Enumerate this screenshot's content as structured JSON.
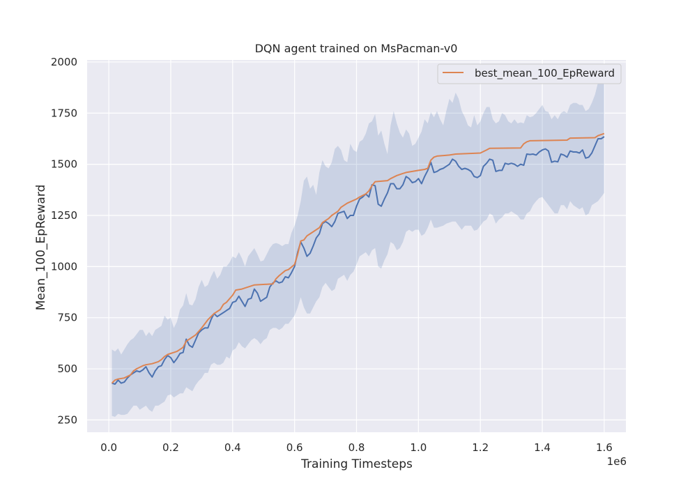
{
  "chart_data": {
    "type": "line",
    "title": "DQN agent trained on MsPacman-v0",
    "xlabel": "Training Timesteps",
    "ylabel": "Mean_100_EpReward",
    "x_offset_label": "1e6",
    "xlim": [
      -0.07,
      1.67
    ],
    "ylim": [
      190,
      2010
    ],
    "xticks": [
      0.0,
      0.2,
      0.4,
      0.6,
      0.8,
      1.0,
      1.2,
      1.4,
      1.6
    ],
    "xtick_labels": [
      "0.0",
      "0.2",
      "0.4",
      "0.6",
      "0.8",
      "1.0",
      "1.2",
      "1.4",
      "1.6"
    ],
    "yticks": [
      250,
      500,
      750,
      1000,
      1250,
      1500,
      1750,
      2000
    ],
    "ytick_labels": [
      "250",
      "500",
      "750",
      "1000",
      "1250",
      "1500",
      "1750",
      "2000"
    ],
    "grid": true,
    "legend_position": "top-right",
    "colors": {
      "background": "#eaeaf2",
      "grid": "#ffffff",
      "mean_line": "#4c72b0",
      "band": "#4c72b0",
      "best_line": "#dd8452"
    },
    "series": [
      {
        "name": "best_mean_100_EpReward",
        "color": "#dd8452",
        "x": [
          0.01,
          0.02,
          0.03,
          0.05,
          0.07,
          0.08,
          0.09,
          0.11,
          0.12,
          0.14,
          0.16,
          0.17,
          0.18,
          0.19,
          0.2,
          0.21,
          0.22,
          0.23,
          0.24,
          0.25,
          0.26,
          0.28,
          0.3,
          0.32,
          0.33,
          0.34,
          0.36,
          0.37,
          0.38,
          0.4,
          0.41,
          0.43,
          0.44,
          0.46,
          0.47,
          0.53,
          0.54,
          0.55,
          0.57,
          0.58,
          0.6,
          0.61,
          0.62,
          0.63,
          0.64,
          0.65,
          0.66,
          0.68,
          0.69,
          0.71,
          0.72,
          0.74,
          0.75,
          0.77,
          0.8,
          0.81,
          0.83,
          0.84,
          0.85,
          0.86,
          0.9,
          0.91,
          0.93,
          0.95,
          0.96,
          0.98,
          1.0,
          1.02,
          1.03,
          1.04,
          1.05,
          1.06,
          1.1,
          1.12,
          1.2,
          1.22,
          1.23,
          1.33,
          1.34,
          1.35,
          1.36,
          1.48,
          1.49,
          1.57,
          1.58,
          1.6
        ],
        "values": [
          430,
          445,
          450,
          455,
          470,
          490,
          500,
          515,
          520,
          525,
          535,
          545,
          560,
          570,
          575,
          580,
          585,
          595,
          605,
          635,
          645,
          665,
          700,
          740,
          755,
          770,
          790,
          815,
          825,
          860,
          885,
          890,
          895,
          905,
          910,
          915,
          940,
          955,
          980,
          985,
          1010,
          1060,
          1125,
          1130,
          1150,
          1160,
          1170,
          1190,
          1215,
          1235,
          1250,
          1270,
          1290,
          1310,
          1330,
          1340,
          1355,
          1370,
          1395,
          1415,
          1420,
          1430,
          1445,
          1455,
          1460,
          1465,
          1470,
          1475,
          1480,
          1520,
          1535,
          1540,
          1545,
          1550,
          1555,
          1570,
          1578,
          1580,
          1600,
          1610,
          1615,
          1618,
          1628,
          1630,
          1640,
          1650
        ]
      },
      {
        "name": "",
        "color": "#4c72b0",
        "x": [
          0.01,
          0.02,
          0.03,
          0.04,
          0.05,
          0.06,
          0.07,
          0.08,
          0.09,
          0.1,
          0.11,
          0.12,
          0.13,
          0.14,
          0.15,
          0.16,
          0.17,
          0.18,
          0.19,
          0.2,
          0.21,
          0.22,
          0.23,
          0.24,
          0.25,
          0.26,
          0.27,
          0.28,
          0.29,
          0.3,
          0.31,
          0.32,
          0.33,
          0.34,
          0.35,
          0.36,
          0.37,
          0.38,
          0.39,
          0.4,
          0.41,
          0.42,
          0.43,
          0.44,
          0.45,
          0.46,
          0.47,
          0.48,
          0.49,
          0.5,
          0.51,
          0.52,
          0.53,
          0.54,
          0.55,
          0.56,
          0.57,
          0.58,
          0.59,
          0.6,
          0.61,
          0.62,
          0.63,
          0.64,
          0.65,
          0.66,
          0.67,
          0.68,
          0.69,
          0.7,
          0.71,
          0.72,
          0.73,
          0.74,
          0.75,
          0.76,
          0.77,
          0.78,
          0.79,
          0.8,
          0.81,
          0.82,
          0.83,
          0.84,
          0.85,
          0.86,
          0.87,
          0.88,
          0.89,
          0.9,
          0.91,
          0.92,
          0.93,
          0.94,
          0.95,
          0.96,
          0.97,
          0.98,
          0.99,
          1.0,
          1.01,
          1.02,
          1.03,
          1.04,
          1.05,
          1.06,
          1.07,
          1.08,
          1.09,
          1.1,
          1.11,
          1.12,
          1.13,
          1.14,
          1.15,
          1.16,
          1.17,
          1.18,
          1.19,
          1.2,
          1.21,
          1.22,
          1.23,
          1.24,
          1.25,
          1.26,
          1.27,
          1.28,
          1.29,
          1.3,
          1.31,
          1.32,
          1.33,
          1.34,
          1.35,
          1.36,
          1.37,
          1.38,
          1.39,
          1.4,
          1.41,
          1.42,
          1.43,
          1.44,
          1.45,
          1.46,
          1.47,
          1.48,
          1.49,
          1.5,
          1.51,
          1.52,
          1.53,
          1.54,
          1.55,
          1.56,
          1.57,
          1.58,
          1.59,
          1.6
        ],
        "values": [
          430,
          425,
          445,
          430,
          435,
          455,
          470,
          480,
          490,
          485,
          495,
          510,
          480,
          460,
          490,
          510,
          515,
          545,
          565,
          555,
          530,
          550,
          575,
          580,
          645,
          615,
          605,
          640,
          675,
          690,
          700,
          700,
          740,
          770,
          755,
          765,
          775,
          785,
          795,
          825,
          830,
          855,
          830,
          805,
          840,
          845,
          890,
          870,
          830,
          840,
          850,
          900,
          920,
          930,
          920,
          925,
          950,
          945,
          970,
          1000,
          1070,
          1120,
          1090,
          1050,
          1065,
          1100,
          1140,
          1160,
          1210,
          1220,
          1210,
          1195,
          1220,
          1260,
          1265,
          1270,
          1235,
          1250,
          1250,
          1295,
          1330,
          1340,
          1355,
          1340,
          1400,
          1395,
          1305,
          1295,
          1330,
          1360,
          1405,
          1405,
          1380,
          1380,
          1400,
          1440,
          1430,
          1410,
          1415,
          1430,
          1405,
          1440,
          1470,
          1510,
          1460,
          1465,
          1475,
          1480,
          1490,
          1500,
          1525,
          1515,
          1490,
          1475,
          1480,
          1475,
          1465,
          1440,
          1435,
          1445,
          1490,
          1505,
          1525,
          1520,
          1465,
          1470,
          1470,
          1505,
          1500,
          1505,
          1500,
          1490,
          1500,
          1495,
          1550,
          1548,
          1550,
          1545,
          1560,
          1570,
          1575,
          1565,
          1510,
          1515,
          1512,
          1550,
          1545,
          1535,
          1565,
          1560,
          1560,
          1555,
          1570,
          1530,
          1535,
          1555,
          1590,
          1625,
          1625,
          1635
        ]
      }
    ],
    "band": {
      "upper": [
        595,
        585,
        600,
        570,
        595,
        620,
        640,
        650,
        670,
        690,
        690,
        660,
        680,
        660,
        690,
        700,
        710,
        760,
        740,
        750,
        700,
        730,
        790,
        810,
        870,
        815,
        810,
        840,
        900,
        935,
        900,
        910,
        950,
        980,
        940,
        960,
        1000,
        1000,
        1020,
        1050,
        1040,
        1070,
        1040,
        1000,
        1050,
        1070,
        1090,
        1060,
        1025,
        1030,
        1060,
        1090,
        1110,
        1115,
        1110,
        1100,
        1110,
        1110,
        1165,
        1200,
        1250,
        1320,
        1420,
        1440,
        1380,
        1400,
        1350,
        1460,
        1520,
        1490,
        1480,
        1510,
        1575,
        1590,
        1570,
        1520,
        1510,
        1600,
        1570,
        1560,
        1610,
        1620,
        1650,
        1700,
        1710,
        1745,
        1640,
        1665,
        1600,
        1550,
        1690,
        1760,
        1700,
        1655,
        1630,
        1670,
        1650,
        1590,
        1600,
        1630,
        1660,
        1720,
        1700,
        1755,
        1730,
        1760,
        1720,
        1690,
        1760,
        1820,
        1800,
        1850,
        1820,
        1760,
        1730,
        1690,
        1680,
        1740,
        1690,
        1710,
        1750,
        1780,
        1780,
        1720,
        1700,
        1710,
        1750,
        1740,
        1710,
        1700,
        1720,
        1700,
        1705,
        1700,
        1740,
        1730,
        1735,
        1750,
        1770,
        1790,
        1760,
        1755,
        1720,
        1740,
        1720,
        1750,
        1760,
        1750,
        1790,
        1800,
        1800,
        1790,
        1790,
        1760,
        1770,
        1800,
        1840,
        1900,
        1900,
        1900
      ],
      "lower": [
        270,
        265,
        280,
        275,
        275,
        280,
        300,
        320,
        320,
        300,
        310,
        320,
        300,
        290,
        320,
        320,
        330,
        340,
        370,
        375,
        360,
        370,
        380,
        380,
        410,
        400,
        390,
        420,
        440,
        455,
        480,
        480,
        520,
        530,
        520,
        520,
        530,
        560,
        550,
        590,
        600,
        630,
        610,
        600,
        620,
        640,
        650,
        640,
        620,
        640,
        650,
        690,
        700,
        700,
        690,
        700,
        720,
        720,
        740,
        760,
        800,
        850,
        800,
        770,
        770,
        800,
        830,
        850,
        900,
        920,
        900,
        880,
        890,
        940,
        950,
        960,
        930,
        960,
        975,
        1010,
        1050,
        1060,
        1070,
        1050,
        1080,
        1090,
        1000,
        990,
        1030,
        1060,
        1120,
        1110,
        1080,
        1090,
        1120,
        1170,
        1180,
        1170,
        1180,
        1180,
        1150,
        1160,
        1190,
        1230,
        1190,
        1190,
        1195,
        1200,
        1210,
        1215,
        1220,
        1220,
        1200,
        1180,
        1200,
        1200,
        1200,
        1175,
        1180,
        1200,
        1220,
        1230,
        1260,
        1250,
        1210,
        1230,
        1240,
        1260,
        1260,
        1270,
        1260,
        1250,
        1230,
        1230,
        1260,
        1270,
        1300,
        1320,
        1335,
        1340,
        1320,
        1300,
        1280,
        1260,
        1260,
        1300,
        1300,
        1280,
        1320,
        1300,
        1290,
        1280,
        1290,
        1250,
        1260,
        1300,
        1310,
        1320,
        1340,
        1360
      ]
    }
  }
}
